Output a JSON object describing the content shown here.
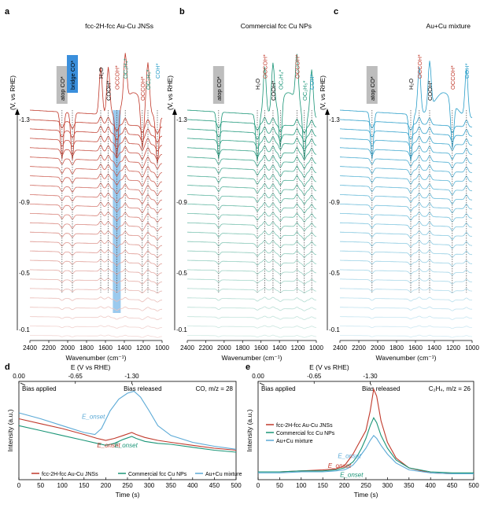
{
  "chart_data": [
    {
      "panel": "a",
      "type": "line",
      "title": "fcc-2H-fcc Au-Cu JNSs",
      "xlabel": "Wavenumber (cm⁻¹)",
      "ylabel": "(V, vs RHE)",
      "xlim": [
        2400,
        1000
      ],
      "x_ticks": [
        "2400",
        "2200",
        "2000",
        "1800",
        "1600",
        "1400",
        "1200",
        "1000"
      ],
      "potential_ticks": [
        "-1.3",
        "-0.9",
        "-0.5",
        "-0.1"
      ],
      "n_spectra": 25,
      "color": "#c0392b",
      "peaks": [
        {
          "label": "atop CO*",
          "wavenumber": 2060,
          "boxed": "gray"
        },
        {
          "label": "bridge CO*",
          "wavenumber": 1950,
          "boxed": "blue"
        },
        {
          "label": "H₂O",
          "wavenumber": 1650
        },
        {
          "label": "COOH*",
          "wavenumber": 1570
        },
        {
          "label": "OCCOH*",
          "wavenumber": 1480,
          "band": true
        },
        {
          "label": "OC₂H₄*",
          "wavenumber": 1390
        },
        {
          "label": "OCCOH*",
          "wavenumber": 1210
        },
        {
          "label": "OC₂H₅*",
          "wavenumber": 1150
        },
        {
          "label": "COH*",
          "wavenumber": 1050
        }
      ]
    },
    {
      "panel": "b",
      "type": "line",
      "title": "Commercial fcc Cu NPs",
      "xlabel": "Wavenumber (cm⁻¹)",
      "ylabel": "(V, vs RHE)",
      "xlim": [
        2400,
        1000
      ],
      "x_ticks": [
        "2400",
        "2200",
        "2000",
        "1800",
        "1600",
        "1400",
        "1200",
        "1000"
      ],
      "potential_ticks": [
        "-1.3",
        "-0.9",
        "-0.5",
        "-0.1"
      ],
      "n_spectra": 25,
      "color": "#1a9577",
      "peaks": [
        {
          "label": "atop CO*",
          "wavenumber": 2060,
          "boxed": "gray"
        },
        {
          "label": "H₂O",
          "wavenumber": 1640
        },
        {
          "label": "OCCOH*",
          "wavenumber": 1560
        },
        {
          "label": "COOH*",
          "wavenumber": 1470
        },
        {
          "label": "OC₂H₄*",
          "wavenumber": 1390
        },
        {
          "label": "OCCOH*",
          "wavenumber": 1210
        },
        {
          "label": "OC₂H₅*",
          "wavenumber": 1130
        },
        {
          "label": "COH*",
          "wavenumber": 1050
        }
      ]
    },
    {
      "panel": "c",
      "type": "line",
      "title": "Au+Cu mixture",
      "xlabel": "Wavenumber (cm⁻¹)",
      "ylabel": "(V, vs RHE)",
      "xlim": [
        2400,
        1000
      ],
      "x_ticks": [
        "2400",
        "2200",
        "2000",
        "1800",
        "1600",
        "1400",
        "1200",
        "1000"
      ],
      "potential_ticks": [
        "-1.3",
        "-0.9",
        "-0.5",
        "-0.1"
      ],
      "n_spectra": 25,
      "color": "#2a9ec9",
      "peaks": [
        {
          "label": "atop CO*",
          "wavenumber": 2060,
          "boxed": "gray"
        },
        {
          "label": "H₂O",
          "wavenumber": 1650
        },
        {
          "label": "OCCOH*",
          "wavenumber": 1560
        },
        {
          "label": "COOH*",
          "wavenumber": 1450
        },
        {
          "label": "OCCOH*",
          "wavenumber": 1210
        },
        {
          "label": "COH*",
          "wavenumber": 1060
        }
      ]
    },
    {
      "panel": "d",
      "type": "line",
      "title": "CO, m/z = 28",
      "xlabel": "Time (s)",
      "ylabel": "Intensity (a.u.)",
      "top_axis_label": "E (V vs RHE)",
      "top_ticks": [
        {
          "label": "0.00",
          "time": 0
        },
        {
          "label": "-0.65",
          "time": 130
        },
        {
          "label": "-1.30",
          "time": 260
        }
      ],
      "xlim": [
        0,
        500
      ],
      "x_ticks": [
        "0",
        "50",
        "100",
        "150",
        "200",
        "250",
        "300",
        "350",
        "400",
        "450",
        "500"
      ],
      "annotations": [
        "Bias applied",
        "Bias released",
        "E_onset",
        "E_onset",
        "E_onset"
      ],
      "series": [
        {
          "name": "fcc-2H-fcc Au-Cu JNSs",
          "color": "#c0392b",
          "x": [
            0,
            50,
            100,
            150,
            180,
            200,
            220,
            240,
            260,
            270,
            290,
            320,
            350,
            400,
            450,
            500
          ],
          "y": [
            0.62,
            0.57,
            0.52,
            0.46,
            0.42,
            0.4,
            0.42,
            0.45,
            0.48,
            0.46,
            0.43,
            0.4,
            0.38,
            0.35,
            0.32,
            0.3
          ]
        },
        {
          "name": "Commercial fcc Cu NPs",
          "color": "#1a9577",
          "x": [
            0,
            50,
            100,
            150,
            180,
            200,
            220,
            240,
            260,
            270,
            290,
            320,
            350,
            400,
            450,
            500
          ],
          "y": [
            0.55,
            0.5,
            0.45,
            0.4,
            0.37,
            0.35,
            0.37,
            0.41,
            0.44,
            0.42,
            0.39,
            0.37,
            0.36,
            0.33,
            0.3,
            0.28
          ]
        },
        {
          "name": "Au+Cu mixture",
          "color": "#5aa9d6",
          "x": [
            0,
            50,
            100,
            150,
            175,
            190,
            210,
            230,
            250,
            265,
            280,
            300,
            320,
            350,
            400,
            450,
            500
          ],
          "y": [
            0.68,
            0.62,
            0.55,
            0.48,
            0.46,
            0.52,
            0.7,
            0.82,
            0.88,
            0.9,
            0.84,
            0.7,
            0.55,
            0.45,
            0.38,
            0.34,
            0.31
          ]
        }
      ]
    },
    {
      "panel": "e",
      "type": "line",
      "title": "C₂H₄, m/z = 26",
      "xlabel": "Time (s)",
      "ylabel": "Intensity (a.u.)",
      "top_axis_label": "E (V vs RHE)",
      "top_ticks": [
        {
          "label": "0.00",
          "time": 0
        },
        {
          "label": "-0.65",
          "time": 130
        },
        {
          "label": "-1.30",
          "time": 260
        }
      ],
      "xlim": [
        0,
        500
      ],
      "x_ticks": [
        "0",
        "50",
        "100",
        "150",
        "200",
        "250",
        "300",
        "350",
        "400",
        "450",
        "500"
      ],
      "annotations": [
        "Bias applied",
        "Bias released",
        "E_onset",
        "E_onset",
        "E_onset"
      ],
      "series": [
        {
          "name": "fcc-2H-fcc Au-Cu JNSs",
          "color": "#c0392b",
          "x": [
            0,
            50,
            100,
            150,
            180,
            200,
            210,
            220,
            230,
            240,
            250,
            260,
            268,
            275,
            285,
            300,
            320,
            350,
            400,
            450,
            500
          ],
          "y": [
            0.08,
            0.08,
            0.09,
            0.1,
            0.11,
            0.14,
            0.2,
            0.26,
            0.34,
            0.42,
            0.5,
            0.7,
            0.92,
            0.85,
            0.6,
            0.38,
            0.22,
            0.12,
            0.07,
            0.06,
            0.06
          ]
        },
        {
          "name": "Commercial fcc Cu NPs",
          "color": "#1a9577",
          "x": [
            0,
            50,
            100,
            150,
            180,
            200,
            210,
            220,
            230,
            240,
            250,
            260,
            268,
            275,
            285,
            300,
            320,
            350,
            400,
            450,
            500
          ],
          "y": [
            0.08,
            0.08,
            0.09,
            0.09,
            0.1,
            0.12,
            0.15,
            0.18,
            0.24,
            0.32,
            0.42,
            0.55,
            0.63,
            0.58,
            0.45,
            0.32,
            0.2,
            0.12,
            0.08,
            0.07,
            0.07
          ]
        },
        {
          "name": "Au+Cu mixture",
          "color": "#5aa9d6",
          "x": [
            0,
            50,
            100,
            150,
            180,
            200,
            210,
            220,
            230,
            240,
            250,
            260,
            268,
            275,
            285,
            300,
            320,
            350,
            400,
            450,
            500
          ],
          "y": [
            0.07,
            0.07,
            0.08,
            0.08,
            0.09,
            0.1,
            0.12,
            0.15,
            0.2,
            0.26,
            0.32,
            0.4,
            0.45,
            0.42,
            0.35,
            0.26,
            0.17,
            0.1,
            0.07,
            0.06,
            0.06
          ]
        }
      ]
    }
  ]
}
